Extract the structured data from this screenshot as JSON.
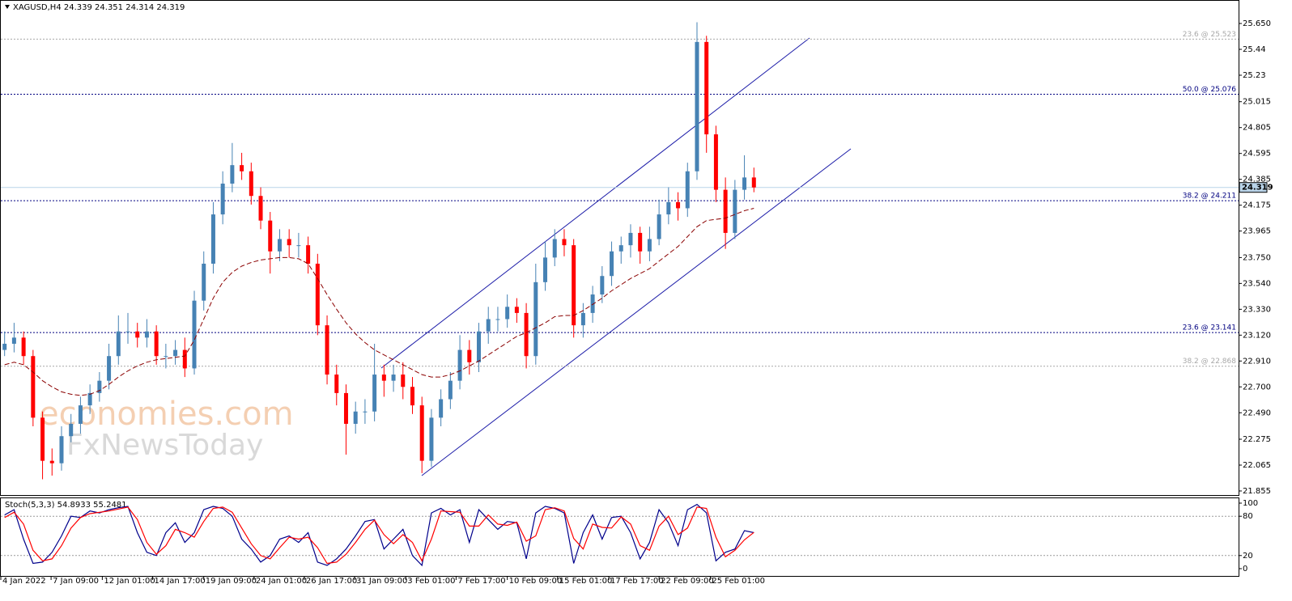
{
  "chart_data": [
    {
      "type": "candlestick",
      "title": "XAGUSD,H4  24.339 24.351 24.314 24.319",
      "open": [
        23.0,
        23.05,
        23.1,
        22.95,
        22.45,
        22.1,
        22.08,
        22.3,
        22.4,
        22.55,
        22.65,
        22.75,
        22.95,
        23.15,
        23.15,
        23.1,
        23.15,
        22.95,
        22.95,
        23.0,
        22.85,
        23.4,
        23.7,
        24.1,
        24.35,
        24.5,
        24.45,
        24.25,
        24.05,
        23.8,
        23.9,
        23.85,
        23.85,
        23.7,
        23.2,
        22.8,
        22.65,
        22.4,
        22.5,
        22.5,
        22.8,
        22.75,
        22.8,
        22.7,
        22.55,
        22.1,
        22.45,
        22.6,
        22.75,
        23.0,
        22.9,
        23.15,
        23.25,
        23.25,
        23.35,
        23.3,
        22.95,
        23.55,
        23.75,
        23.9,
        23.85,
        23.2,
        23.3,
        23.45,
        23.6,
        23.8,
        23.85,
        23.95,
        23.8,
        23.9,
        24.1,
        24.2,
        24.15,
        24.45,
        25.5,
        24.75,
        24.3,
        23.95,
        24.3,
        24.4
      ],
      "high": [
        23.15,
        23.22,
        23.15,
        23.0,
        22.5,
        22.2,
        22.38,
        22.48,
        22.62,
        22.72,
        22.82,
        23.05,
        23.28,
        23.3,
        23.22,
        23.25,
        23.2,
        23.05,
        23.08,
        23.1,
        23.48,
        23.8,
        24.2,
        24.45,
        24.68,
        24.6,
        24.52,
        24.32,
        24.12,
        23.98,
        23.98,
        23.95,
        23.92,
        23.78,
        23.28,
        22.88,
        22.72,
        22.58,
        22.6,
        23.05,
        22.88,
        22.88,
        22.9,
        22.78,
        22.62,
        22.52,
        22.68,
        22.82,
        23.12,
        23.08,
        23.22,
        23.35,
        23.35,
        23.45,
        23.42,
        23.38,
        23.7,
        23.88,
        23.98,
        23.98,
        23.9,
        23.38,
        23.52,
        23.68,
        23.88,
        23.92,
        24.02,
        24.0,
        24.0,
        24.22,
        24.32,
        24.28,
        24.52,
        25.66,
        25.55,
        24.82,
        24.4,
        24.38,
        24.58,
        24.48
      ],
      "low": [
        22.95,
        22.98,
        22.88,
        22.38,
        21.95,
        21.98,
        22.02,
        22.25,
        22.32,
        22.48,
        22.58,
        22.68,
        22.88,
        23.05,
        23.02,
        23.02,
        22.88,
        22.85,
        22.88,
        22.78,
        22.8,
        23.32,
        23.62,
        24.02,
        24.28,
        24.38,
        24.18,
        23.98,
        23.62,
        23.72,
        23.75,
        23.75,
        23.62,
        23.12,
        22.72,
        22.55,
        22.15,
        22.32,
        22.4,
        22.42,
        22.62,
        22.66,
        22.6,
        22.48,
        22.0,
        22.05,
        22.38,
        22.52,
        22.68,
        22.8,
        22.82,
        23.05,
        23.15,
        23.18,
        23.22,
        22.85,
        22.88,
        23.48,
        23.68,
        23.76,
        23.1,
        23.1,
        23.22,
        23.38,
        23.52,
        23.7,
        23.75,
        23.7,
        23.72,
        23.85,
        24.02,
        24.05,
        24.08,
        24.38,
        24.6,
        24.2,
        23.82,
        23.9,
        24.22,
        24.28
      ],
      "close": [
        23.05,
        23.1,
        22.95,
        22.45,
        22.1,
        22.08,
        22.3,
        22.4,
        22.55,
        22.65,
        22.75,
        22.95,
        23.15,
        23.15,
        23.1,
        23.15,
        22.95,
        22.95,
        23.0,
        22.85,
        23.4,
        23.7,
        24.1,
        24.35,
        24.5,
        24.45,
        24.25,
        24.05,
        23.8,
        23.9,
        23.85,
        23.85,
        23.7,
        23.2,
        22.8,
        22.65,
        22.4,
        22.5,
        22.5,
        22.8,
        22.75,
        22.8,
        22.7,
        22.55,
        22.1,
        22.45,
        22.6,
        22.75,
        23.0,
        22.9,
        23.15,
        23.25,
        23.25,
        23.35,
        23.3,
        22.95,
        23.55,
        23.75,
        23.9,
        23.85,
        23.2,
        23.3,
        23.45,
        23.6,
        23.8,
        23.85,
        23.95,
        23.8,
        23.9,
        24.1,
        24.2,
        24.15,
        24.45,
        25.5,
        24.75,
        24.3,
        23.95,
        24.3,
        24.4,
        24.319
      ],
      "up_color": "#4682b4",
      "down_color": "#ff0000",
      "ma": {
        "color": "#8b0000",
        "values": [
          22.88,
          22.9,
          22.88,
          22.82,
          22.75,
          22.7,
          22.66,
          22.64,
          22.63,
          22.64,
          22.67,
          22.72,
          22.78,
          22.83,
          22.87,
          22.9,
          22.92,
          22.93,
          22.94,
          22.95,
          23.08,
          23.25,
          23.42,
          23.55,
          23.63,
          23.68,
          23.71,
          23.73,
          23.74,
          23.75,
          23.75,
          23.74,
          23.7,
          23.58,
          23.45,
          23.33,
          23.22,
          23.13,
          23.06,
          23.0,
          22.96,
          22.92,
          22.88,
          22.84,
          22.8,
          22.78,
          22.78,
          22.8,
          22.83,
          22.87,
          22.91,
          22.96,
          23.01,
          23.06,
          23.11,
          23.14,
          23.18,
          23.22,
          23.27,
          23.28,
          23.28,
          23.32,
          23.37,
          23.42,
          23.48,
          23.53,
          23.58,
          23.62,
          23.66,
          23.72,
          23.78,
          23.84,
          23.92,
          24.0,
          24.05,
          24.06,
          24.07,
          24.1,
          24.13,
          24.15
        ]
      },
      "last_price": 24.319,
      "last_price_color": "#b9d3e8",
      "fib_levels": [
        {
          "label": "23.6 @ 25.523",
          "value": 25.523,
          "color": "#a8a8a8"
        },
        {
          "label": "50.0 @ 25.076",
          "value": 25.076,
          "color": "#000080"
        },
        {
          "label": "38.2 @ 24.211",
          "value": 24.211,
          "color": "#000080"
        },
        {
          "label": "23.6 @ 23.141",
          "value": 23.141,
          "color": "#000080"
        },
        {
          "label": "38.2 @ 22.868",
          "value": 22.868,
          "color": "#a8a8a8"
        }
      ],
      "watermark": [
        "economies.com",
        "FxNewsToday"
      ],
      "xlim": [
        -0.4,
        130.1
      ],
      "xticks": [
        {
          "value": -0.4,
          "label": "4 Jan 2022"
        },
        {
          "value": 4.9,
          "label": "7 Jan 09:00"
        },
        {
          "value": 10.3,
          "label": "12 Jan 01:00"
        },
        {
          "value": 15.6,
          "label": "14 Jan 17:00"
        },
        {
          "value": 21.0,
          "label": "19 Jan 09:00"
        },
        {
          "value": 26.3,
          "label": "24 Jan 01:00"
        },
        {
          "value": 31.6,
          "label": "26 Jan 17:00"
        },
        {
          "value": 36.9,
          "label": "31 Jan 09:00"
        },
        {
          "value": 42.3,
          "label": "3 Feb 01:00"
        },
        {
          "value": 47.6,
          "label": "7 Feb 17:00"
        },
        {
          "value": 53.0,
          "label": "10 Feb 09:00"
        },
        {
          "value": 58.3,
          "label": "15 Feb 01:00"
        },
        {
          "value": 63.7,
          "label": "17 Feb 17:00"
        },
        {
          "value": 69.0,
          "label": "22 Feb 09:00"
        },
        {
          "value": 74.4,
          "label": "25 Feb 01:00"
        }
      ],
      "ylim": [
        21.822,
        25.834
      ],
      "yticks": [
        {
          "value": 25.65,
          "label": "25.650"
        },
        25.44,
        25.23,
        25.015,
        24.805,
        24.595,
        24.385,
        24.175,
        23.965,
        {
          "value": 23.75,
          "label": "23.750"
        },
        {
          "value": 23.54,
          "label": "23.540"
        },
        {
          "value": 23.33,
          "label": "23.330"
        },
        {
          "value": 23.12,
          "label": "23.120"
        },
        {
          "value": 22.91,
          "label": "22.910"
        },
        {
          "value": 22.7,
          "label": "22.700"
        },
        {
          "value": 22.49,
          "label": "22.490"
        },
        22.275,
        22.065,
        21.855
      ]
    },
    {
      "type": "line",
      "title": "Stoch(5,3,3) 54.8933 55.2481",
      "series": [
        {
          "color": "#00008b",
          "values": [
            82,
            90,
            45,
            8,
            10,
            25,
            50,
            80,
            78,
            88,
            85,
            90,
            93,
            95,
            55,
            25,
            20,
            55,
            70,
            40,
            55,
            90,
            95,
            92,
            80,
            45,
            30,
            10,
            20,
            45,
            50,
            40,
            55,
            10,
            5,
            15,
            30,
            50,
            72,
            75,
            30,
            45,
            60,
            20,
            5,
            85,
            92,
            82,
            90,
            40,
            90,
            75,
            60,
            72,
            70,
            15,
            85,
            95,
            92,
            85,
            8,
            55,
            82,
            45,
            78,
            80,
            55,
            15,
            40,
            90,
            70,
            35,
            90,
            98,
            85,
            12,
            25,
            30,
            58,
            54.8933
          ]
        },
        {
          "color": "#ff0000",
          "values": [
            78,
            86,
            68,
            28,
            12,
            15,
            35,
            62,
            78,
            84,
            86,
            88,
            91,
            94,
            75,
            40,
            22,
            35,
            60,
            55,
            48,
            72,
            92,
            94,
            86,
            62,
            38,
            20,
            15,
            32,
            48,
            45,
            48,
            32,
            8,
            10,
            22,
            40,
            60,
            74,
            52,
            38,
            52,
            40,
            12,
            45,
            88,
            87,
            86,
            65,
            65,
            82,
            68,
            66,
            71,
            42,
            50,
            90,
            93,
            88,
            46,
            30,
            68,
            63,
            62,
            79,
            68,
            35,
            28,
            65,
            80,
            52,
            62,
            94,
            92,
            48,
            18,
            28,
            44,
            55.2481
          ]
        }
      ],
      "levels": [
        20,
        80
      ],
      "ylim": [
        0,
        100
      ],
      "yticks": [
        0,
        20,
        80,
        100
      ]
    }
  ]
}
